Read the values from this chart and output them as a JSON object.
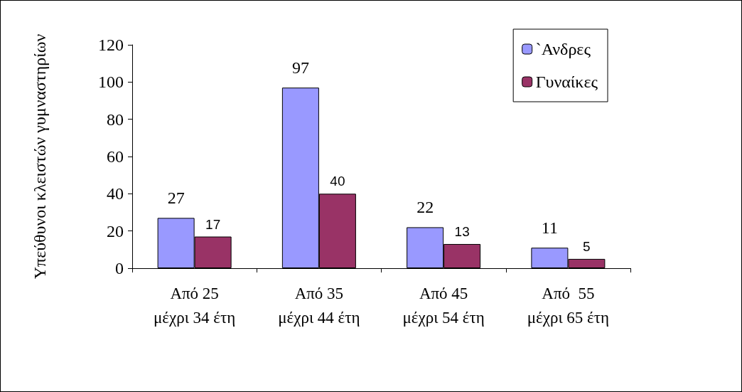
{
  "chart_data": {
    "type": "bar",
    "ylabel": "Υπεύθυνοι κλειστών γυμναστηρίων",
    "categories": [
      "Από 25\nμέχρι 34 έτη",
      "Από 35\nμέχρι 44 έτη",
      "Από 45\nμέχρι 54 έτη",
      "Από  55\nμέχρι 65 έτη"
    ],
    "series": [
      {
        "name": "`Ανδρες",
        "color": "#9999ff",
        "values": [
          27,
          97,
          22,
          11
        ]
      },
      {
        "name": "Γυναίκες",
        "color": "#993366",
        "values": [
          17,
          40,
          13,
          5
        ]
      }
    ],
    "ylim": [
      0,
      120
    ],
    "yticks": [
      0,
      20,
      40,
      60,
      80,
      100,
      120
    ],
    "grid": false,
    "legend": "top right",
    "data_labels": true
  }
}
